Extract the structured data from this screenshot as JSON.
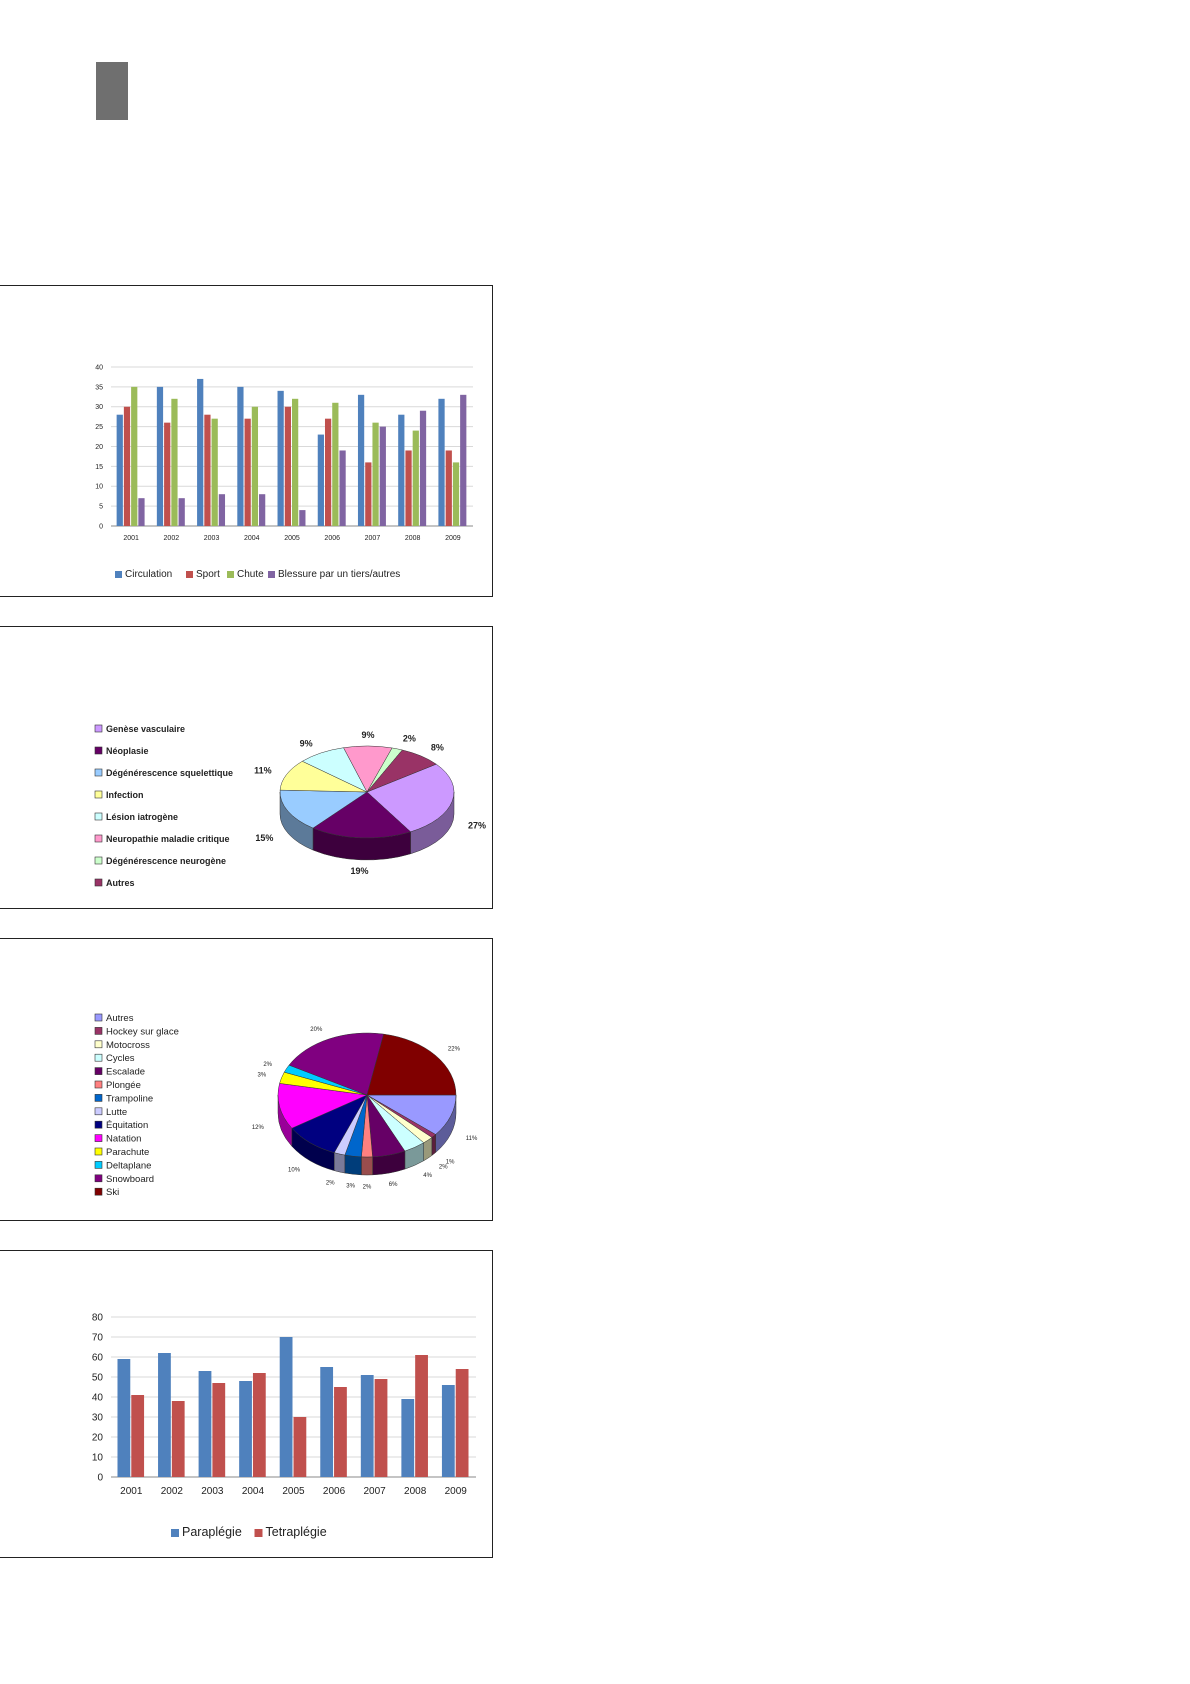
{
  "colors": {
    "circulation": "#4f81bd",
    "sport": "#c0504d",
    "chute": "#9bbb59",
    "blessure": "#8064a2",
    "grid": "#d9d9d9",
    "axis": "#888888"
  },
  "chart_data": [
    {
      "type": "bar",
      "categories": [
        "2001",
        "2002",
        "2003",
        "2004",
        "2005",
        "2006",
        "2007",
        "2008",
        "2009"
      ],
      "series": [
        {
          "name": "Circulation",
          "color": "#4f81bd",
          "values": [
            28,
            35,
            37,
            35,
            34,
            23,
            33,
            28,
            32
          ]
        },
        {
          "name": "Sport",
          "color": "#c0504d",
          "values": [
            30,
            26,
            28,
            27,
            30,
            27,
            16,
            19,
            19
          ]
        },
        {
          "name": "Chute",
          "color": "#9bbb59",
          "values": [
            35,
            32,
            27,
            30,
            32,
            31,
            26,
            24,
            16
          ]
        },
        {
          "name": "Blessure par un tiers/autres",
          "color": "#8064a2",
          "values": [
            7,
            7,
            8,
            8,
            4,
            19,
            25,
            29,
            33
          ]
        }
      ],
      "yticks": [
        "0",
        "5",
        "10",
        "15",
        "20",
        "25",
        "30",
        "35",
        "40"
      ],
      "ylim": [
        0,
        40
      ],
      "grid": true,
      "legend": "bottom"
    },
    {
      "type": "pie",
      "slices": [
        {
          "label": "Genèse vasculaire",
          "value": 27,
          "value_label": "27%",
          "color": "#cc99ff"
        },
        {
          "label": "Néoplasie",
          "value": 19,
          "value_label": "19%",
          "color": "#660066"
        },
        {
          "label": "Dégénérescence squelettique",
          "value": 15,
          "value_label": "15%",
          "color": "#99ccff"
        },
        {
          "label": "Infection",
          "value": 11,
          "value_label": "11%",
          "color": "#ffff99"
        },
        {
          "label": "Lésion iatrogène",
          "value": 9,
          "value_label": "9%",
          "color": "#ccffff"
        },
        {
          "label": "Neuropathie maladie critique",
          "value": 9,
          "value_label": "9%",
          "color": "#ff99cc"
        },
        {
          "label": "Dégénérescence neurogène",
          "value": 2,
          "value_label": "2%",
          "color": "#ccffcc"
        },
        {
          "label": "Autres",
          "value": 8,
          "value_label": "8%",
          "color": "#993366"
        }
      ],
      "legend": "left"
    },
    {
      "type": "pie",
      "slices": [
        {
          "label": "Autres",
          "value": 11,
          "value_label": "11%",
          "color": "#9999ff"
        },
        {
          "label": "Hockey sur glace",
          "value": 1,
          "value_label": "1%",
          "color": "#993366"
        },
        {
          "label": "Motocross",
          "value": 2,
          "value_label": "2%",
          "color": "#ffffcc"
        },
        {
          "label": "Cycles",
          "value": 4,
          "value_label": "4%",
          "color": "#ccffff"
        },
        {
          "label": "Escalade",
          "value": 6,
          "value_label": "6%",
          "color": "#660066"
        },
        {
          "label": "Plongée",
          "value": 2,
          "value_label": "2%",
          "color": "#ff8080"
        },
        {
          "label": "Trampoline",
          "value": 3,
          "value_label": "3%",
          "color": "#0066cc"
        },
        {
          "label": "Lutte",
          "value": 2,
          "value_label": "2%",
          "color": "#ccccff"
        },
        {
          "label": "Équitation",
          "value": 10,
          "value_label": "10%",
          "color": "#000080"
        },
        {
          "label": "Natation",
          "value": 12,
          "value_label": "12%",
          "color": "#ff00ff"
        },
        {
          "label": "Parachute",
          "value": 3,
          "value_label": "3%",
          "color": "#ffff00"
        },
        {
          "label": "Deltaplane",
          "value": 2,
          "value_label": "2%",
          "color": "#00ccff"
        },
        {
          "label": "Snowboard",
          "value": 20,
          "value_label": "20%",
          "color": "#800080"
        },
        {
          "label": "Ski",
          "value": 22,
          "value_label": "22%",
          "color": "#800000"
        }
      ],
      "legend": "left"
    },
    {
      "type": "bar",
      "categories": [
        "2001",
        "2002",
        "2003",
        "2004",
        "2005",
        "2006",
        "2007",
        "2008",
        "2009"
      ],
      "series": [
        {
          "name": "Paraplégie",
          "color": "#4f81bd",
          "values": [
            59,
            62,
            53,
            48,
            70,
            55,
            51,
            39,
            46
          ]
        },
        {
          "name": "Tetraplégie",
          "color": "#c0504d",
          "values": [
            41,
            38,
            47,
            52,
            30,
            45,
            49,
            61,
            54
          ]
        }
      ],
      "yticks": [
        "0",
        "10",
        "20",
        "30",
        "40",
        "50",
        "60",
        "70",
        "80"
      ],
      "ylim": [
        0,
        80
      ],
      "grid": true,
      "legend": "bottom"
    }
  ]
}
